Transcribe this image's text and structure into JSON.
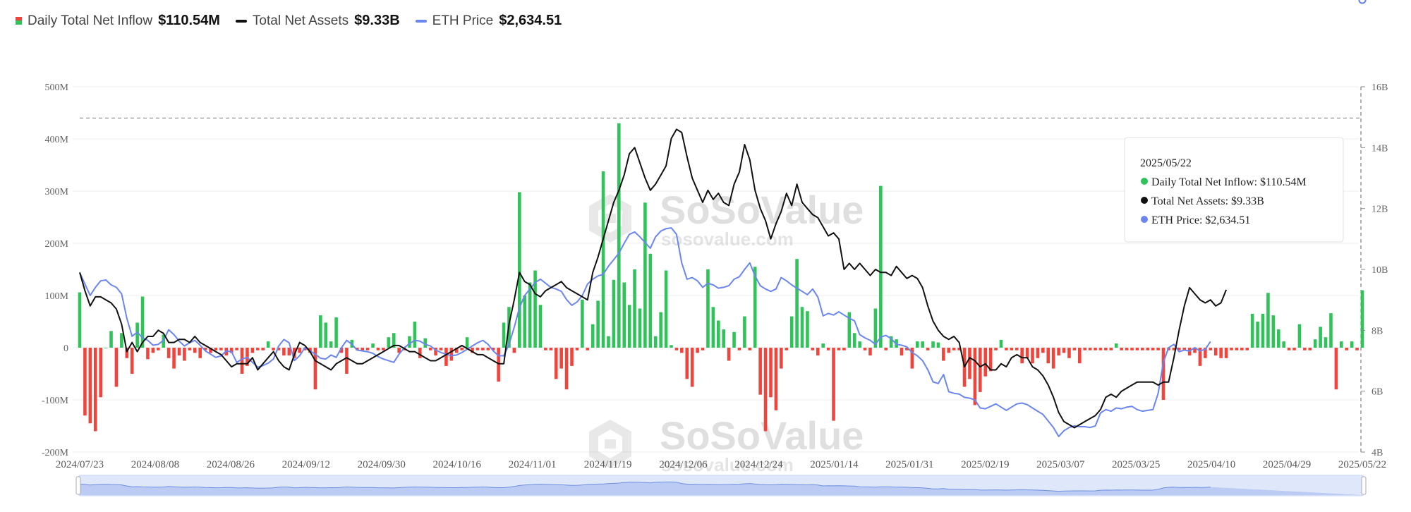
{
  "legend": [
    {
      "label": "Daily Total Net Inflow",
      "value": "$110.54M",
      "icon": "bar-swatch",
      "colors": [
        "#f0443c",
        "#2fc35a"
      ]
    },
    {
      "label": "Total Net Assets",
      "value": "$9.33B",
      "icon": "line-swatch",
      "color": "#111111"
    },
    {
      "label": "ETH Price",
      "value": "$2,634.51",
      "icon": "line-swatch",
      "color": "#6b86ee"
    }
  ],
  "watermark": {
    "brand": "SoSoValue",
    "url": "sosovalue.com",
    "icon": "sosovalue-logo-icon"
  },
  "tooltip": {
    "date": "2025/05/22",
    "rows": [
      {
        "label": "Daily Total Net Inflow: $110.54M",
        "color": "#2fc35a"
      },
      {
        "label": "Total Net Assets: $9.33B",
        "color": "#111111"
      },
      {
        "label": "ETH Price: $2,634.51",
        "color": "#6b86ee"
      }
    ]
  },
  "chart_data": {
    "type": "bar",
    "title": "",
    "colors": {
      "inflow_positive": "#2fc35a",
      "inflow_negative": "#f0443c",
      "assets": "#111111",
      "price": "#6b86ee"
    },
    "x_tick_labels": [
      "2024/07/23",
      "2024/08/08",
      "2024/08/26",
      "2024/09/12",
      "2024/09/30",
      "2024/10/16",
      "2024/11/01",
      "2024/11/19",
      "2024/12/06",
      "2024/12/24",
      "2025/01/14",
      "2025/01/31",
      "2025/02/19",
      "2025/03/07",
      "2025/03/25",
      "2025/04/10",
      "2025/04/29",
      "2025/05/22"
    ],
    "left_axis": {
      "ylim": [
        -200,
        500
      ],
      "ticks": [
        "500M",
        "400M",
        "300M",
        "200M",
        "100M",
        "0",
        "-100M",
        "-200M"
      ]
    },
    "right_axis": {
      "ylim": [
        4,
        16
      ],
      "ticks": [
        "16B",
        "14B",
        "12B",
        "10B",
        "8B",
        "6B",
        "4B"
      ]
    },
    "dashed_reference_left": 440,
    "series": [
      {
        "name": "Daily Total Net Inflow",
        "type": "bar",
        "axis": "left",
        "values": [
          106,
          -130,
          -145,
          -160,
          -95,
          0,
          32,
          -75,
          28,
          -20,
          -50,
          48,
          98,
          -22,
          -10,
          -5,
          25,
          -20,
          -40,
          -15,
          -25,
          -5,
          -10,
          -20,
          -5,
          -10,
          -5,
          -5,
          -15,
          -10,
          -5,
          -50,
          -35,
          -10,
          -5,
          -5,
          12,
          -5,
          -5,
          -15,
          -15,
          -20,
          -10,
          -5,
          -10,
          -80,
          62,
          48,
          12,
          58,
          -10,
          -50,
          15,
          -5,
          -5,
          -5,
          8,
          -5,
          -5,
          20,
          28,
          -10,
          -5,
          22,
          50,
          -20,
          18,
          -5,
          -15,
          -5,
          -35,
          -25,
          -10,
          -5,
          20,
          -10,
          -5,
          -5,
          -5,
          -5,
          -65,
          48,
          78,
          -10,
          298,
          100,
          125,
          148,
          82,
          -5,
          -5,
          -60,
          -40,
          -80,
          -35,
          -5,
          92,
          -5,
          45,
          90,
          338,
          22,
          130,
          430,
          125,
          82,
          150,
          75,
          278,
          180,
          22,
          68,
          148,
          5,
          -5,
          -10,
          -60,
          -75,
          -10,
          -5,
          150,
          78,
          52,
          35,
          -25,
          30,
          -5,
          60,
          -5,
          155,
          -90,
          -160,
          -95,
          -120,
          -40,
          -5,
          60,
          170,
          78,
          70,
          -5,
          -15,
          8,
          -5,
          -140,
          -5,
          -5,
          68,
          28,
          12,
          -5,
          -15,
          75,
          310,
          -5,
          22,
          16,
          -15,
          -5,
          -40,
          12,
          12,
          -5,
          12,
          10,
          -25,
          -10,
          -5,
          -5,
          -75,
          -60,
          -110,
          -85,
          -55,
          -45,
          -5,
          15,
          -5,
          -5,
          -5,
          -30,
          -20,
          -30,
          -20,
          -10,
          -30,
          -40,
          -15,
          -10,
          -20,
          -5,
          -30,
          -5,
          -5,
          -5,
          -5,
          -5,
          -5,
          8,
          -5,
          -5,
          -5,
          -5,
          -5,
          -5,
          -5,
          -5,
          -100,
          -5,
          -5,
          -5,
          -5,
          -15,
          -10,
          -35,
          -20,
          -5,
          -15,
          -20,
          -20,
          -5,
          -5,
          -5,
          -5,
          65,
          50,
          65,
          105,
          62,
          35,
          12,
          -5,
          -5,
          45,
          -5,
          -5,
          16,
          40,
          20,
          66,
          -80,
          12,
          -5,
          12,
          -5,
          110
        ]
      },
      {
        "name": "Total Net Assets",
        "type": "line",
        "axis": "right",
        "values": [
          9.9,
          9.3,
          8.8,
          9.1,
          9.1,
          9.0,
          8.9,
          8.7,
          8.2,
          7.3,
          7.6,
          7.3,
          7.6,
          7.8,
          7.8,
          8.0,
          7.9,
          7.6,
          7.6,
          7.7,
          7.7,
          7.6,
          7.8,
          7.6,
          7.5,
          7.4,
          7.3,
          7.2,
          7.0,
          6.8,
          6.9,
          6.9,
          6.9,
          7.1,
          6.7,
          6.9,
          7.1,
          7.3,
          7.0,
          6.8,
          6.7,
          7.2,
          7.6,
          7.5,
          7.3,
          7.0,
          6.9,
          6.8,
          6.7,
          6.9,
          7.0,
          7.1,
          7.0,
          6.9,
          6.9,
          7.0,
          7.1,
          7.2,
          7.3,
          7.4,
          7.5,
          7.5,
          7.4,
          7.3,
          7.3,
          7.2,
          7.1,
          7.0,
          7.0,
          7.1,
          7.2,
          7.3,
          7.4,
          7.5,
          7.4,
          7.3,
          7.2,
          7.2,
          7.1,
          7.0,
          6.9,
          6.9,
          8.2,
          9.0,
          9.9,
          9.6,
          9.5,
          9.2,
          9.1,
          9.3,
          9.4,
          9.5,
          9.6,
          9.4,
          9.3,
          9.2,
          9.1,
          9.0,
          9.9,
          10.4,
          11.0,
          11.6,
          12.2,
          12.6,
          13.1,
          13.8,
          14.0,
          13.5,
          13.0,
          12.6,
          12.8,
          13.1,
          13.4,
          14.3,
          14.6,
          14.5,
          13.7,
          13.0,
          12.6,
          12.2,
          12.6,
          12.3,
          12.5,
          12.2,
          12.1,
          12.8,
          13.2,
          14.1,
          13.6,
          12.6,
          12.0,
          11.6,
          11.0,
          11.5,
          11.9,
          12.5,
          12.1,
          12.8,
          12.2,
          12.0,
          11.8,
          11.7,
          11.4,
          11.1,
          11.2,
          11.0,
          10.0,
          10.2,
          10.0,
          10.2,
          10.0,
          9.8,
          10.0,
          9.9,
          9.9,
          9.8,
          10.1,
          9.9,
          9.7,
          9.8,
          9.7,
          9.4,
          8.8,
          8.3,
          8.0,
          7.8,
          7.7,
          7.8,
          7.6,
          6.8,
          7.1,
          7.0,
          6.8,
          6.9,
          6.7,
          6.7,
          6.9,
          6.8,
          7.1,
          7.2,
          7.1,
          7.1,
          6.8,
          6.7,
          6.5,
          6.2,
          5.8,
          5.3,
          5.0,
          4.9,
          4.8,
          4.9,
          5.0,
          5.1,
          5.2,
          5.4,
          5.8,
          5.9,
          5.8,
          6.0,
          6.1,
          6.2,
          6.3,
          6.3,
          6.3,
          6.3,
          6.2,
          6.3,
          6.3,
          7.1,
          8.0,
          8.8,
          9.4,
          9.2,
          9.0,
          8.9,
          9.0,
          8.8,
          8.9,
          9.33
        ]
      },
      {
        "name": "ETH Price",
        "type": "line",
        "axis": "right",
        "values": [
          3480,
          3340,
          3200,
          3300,
          3380,
          3390,
          3330,
          3300,
          3220,
          2920,
          2700,
          2750,
          2680,
          2650,
          2590,
          2600,
          2650,
          2780,
          2720,
          2640,
          2580,
          2620,
          2650,
          2590,
          2520,
          2480,
          2440,
          2460,
          2520,
          2510,
          2380,
          2420,
          2440,
          2380,
          2320,
          2340,
          2370,
          2420,
          2580,
          2660,
          2620,
          2400,
          2460,
          2560,
          2520,
          2480,
          2430,
          2420,
          2470,
          2440,
          2560,
          2650,
          2600,
          2530,
          2520,
          2510,
          2490,
          2450,
          2420,
          2400,
          2380,
          2480,
          2560,
          2610,
          2650,
          2640,
          2600,
          2580,
          2530,
          2500,
          2480,
          2460,
          2470,
          2500,
          2540,
          2580,
          2620,
          2650,
          2600,
          2520,
          2460,
          2460,
          2600,
          2810,
          3050,
          3200,
          3280,
          3360,
          3400,
          3350,
          3300,
          3280,
          3250,
          3150,
          3080,
          3120,
          3200,
          3340,
          3400,
          3440,
          3460,
          3560,
          3640,
          3720,
          3840,
          3950,
          3980,
          3920,
          3850,
          3780,
          3920,
          3990,
          4020,
          4030,
          3950,
          3600,
          3400,
          3420,
          3380,
          3300,
          3350,
          3330,
          3290,
          3300,
          3320,
          3400,
          3430,
          3520,
          3600,
          3440,
          3320,
          3280,
          3250,
          3280,
          3420,
          3380,
          3330,
          3290,
          3250,
          3210,
          3280,
          3180,
          2950,
          2980,
          2960,
          3000,
          2960,
          2920,
          2890,
          2720,
          2680,
          2650,
          2600,
          2690,
          2710,
          2670,
          2600,
          2590,
          2570,
          2500,
          2460,
          2400,
          2290,
          2140,
          2120,
          2230,
          2020,
          2000,
          1990,
          1950,
          1940,
          1920,
          1820,
          1810,
          1840,
          1870,
          1830,
          1790,
          1830,
          1870,
          1880,
          1860,
          1820,
          1780,
          1740,
          1660,
          1580,
          1470,
          1540,
          1580,
          1600,
          1590,
          1590,
          1580,
          1600,
          1760,
          1800,
          1780,
          1820,
          1810,
          1830,
          1840,
          1800,
          1780,
          1790,
          1800,
          2000,
          2380,
          2560,
          2600,
          2510,
          2530,
          2520,
          2560,
          2520,
          2540,
          2634.51
        ]
      }
    ]
  }
}
